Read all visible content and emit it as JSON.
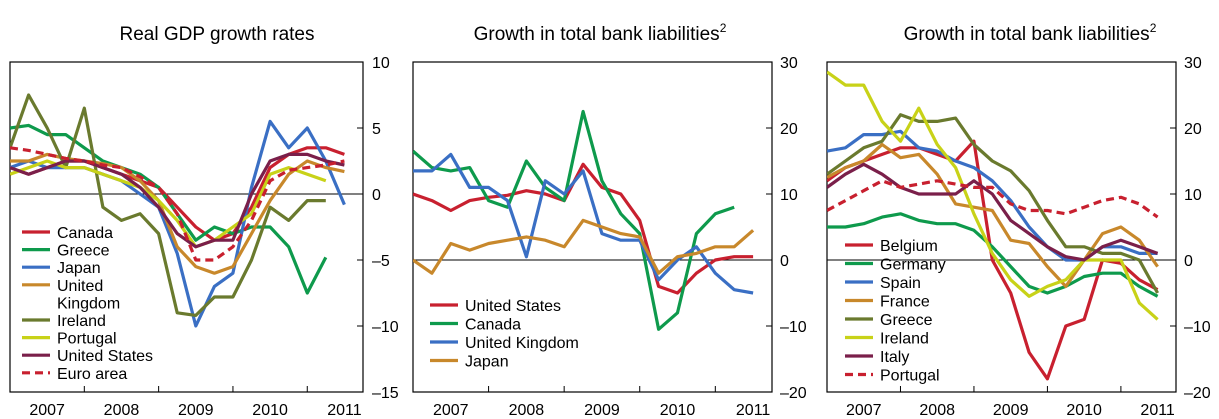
{
  "chart_data": [
    {
      "type": "line",
      "title": "Real GDP growth rates",
      "title_sup": "",
      "xlabel": "",
      "ylabel": "",
      "x_ticks": [
        "2007",
        "2008",
        "2009",
        "2010",
        "2011"
      ],
      "xlim": [
        2006.5,
        2011.25
      ],
      "ylim": [
        -15,
        10
      ],
      "y_ticks": [
        -15,
        -10,
        -5,
        0,
        5,
        10
      ],
      "y_tick_labels": [
        "–15",
        "–10",
        "–5",
        "0",
        "5",
        "10"
      ],
      "grid": false,
      "legend_position": "bottom-left",
      "x": [
        2006.5,
        2006.75,
        2007.0,
        2007.25,
        2007.5,
        2007.75,
        2008.0,
        2008.25,
        2008.5,
        2008.75,
        2009.0,
        2009.25,
        2009.5,
        2009.75,
        2010.0,
        2010.25,
        2010.5,
        2010.75,
        2011.0
      ],
      "series": [
        {
          "name": "Canada",
          "color": "#c8202f",
          "dash": false,
          "values": [
            2.0,
            1.5,
            2.0,
            2.5,
            2.5,
            2.0,
            1.5,
            1.0,
            0.5,
            -1.0,
            -2.5,
            -3.5,
            -3.0,
            -1.0,
            2.0,
            3.0,
            3.5,
            3.5,
            3.0
          ]
        },
        {
          "name": "Greece",
          "color": "#0e9a4c",
          "dash": false,
          "values": [
            5.0,
            5.2,
            4.5,
            4.5,
            3.5,
            2.5,
            2.0,
            1.5,
            0.5,
            -1.5,
            -3.5,
            -2.5,
            -3.0,
            -2.5,
            -2.5,
            -4.0,
            -7.5,
            -4.8,
            null
          ]
        },
        {
          "name": "Japan",
          "color": "#3a6fc4",
          "dash": false,
          "values": [
            2.0,
            2.5,
            2.0,
            2.0,
            2.0,
            1.5,
            1.0,
            0.0,
            -1.0,
            -4.5,
            -10.0,
            -7.0,
            -6.0,
            0.5,
            5.5,
            3.5,
            5.0,
            2.5,
            -0.8
          ]
        },
        {
          "name": "United Kingdom",
          "color": "#c8882b",
          "dash": false,
          "values": [
            2.5,
            2.5,
            3.0,
            2.7,
            2.5,
            2.3,
            2.0,
            1.0,
            -0.5,
            -4.0,
            -5.5,
            -6.0,
            -5.5,
            -3.0,
            -0.5,
            1.5,
            2.5,
            2.0,
            1.7
          ]
        },
        {
          "name": "Ireland",
          "color": "#6a7a2e",
          "dash": false,
          "values": [
            3.5,
            7.5,
            5.0,
            2.0,
            6.5,
            -1.0,
            -2.0,
            -1.5,
            -3.0,
            -9.0,
            -9.2,
            -7.8,
            -7.8,
            -5.0,
            -1.0,
            -2.0,
            -0.5,
            -0.5,
            null
          ]
        },
        {
          "name": "Portugal",
          "color": "#c8d218",
          "dash": false,
          "values": [
            1.5,
            2.0,
            2.5,
            2.0,
            2.0,
            1.5,
            1.0,
            0.5,
            -0.5,
            -2.0,
            -4.0,
            -3.5,
            -2.5,
            -1.5,
            1.5,
            2.0,
            1.5,
            1.0,
            null
          ]
        },
        {
          "name": "United States",
          "color": "#7a1f4a",
          "dash": false,
          "values": [
            2.0,
            1.5,
            2.0,
            2.5,
            2.5,
            2.0,
            1.5,
            0.5,
            -1.0,
            -3.0,
            -4.0,
            -3.5,
            -3.5,
            0.0,
            2.5,
            3.0,
            3.0,
            2.5,
            2.2
          ]
        },
        {
          "name": "Euro area",
          "color": "#c8202f",
          "dash": true,
          "values": [
            3.5,
            3.3,
            3.0,
            2.7,
            2.5,
            2.2,
            2.0,
            1.3,
            0.5,
            -1.5,
            -5.0,
            -5.0,
            -4.0,
            -2.0,
            1.0,
            1.8,
            2.0,
            2.2,
            2.5
          ]
        }
      ]
    },
    {
      "type": "line",
      "title": "Growth in total bank liabilities",
      "title_sup": "2",
      "xlabel": "",
      "ylabel": "",
      "x_ticks": [
        "2007",
        "2008",
        "2009",
        "2010",
        "2011"
      ],
      "xlim": [
        2006.5,
        2011.25
      ],
      "ylim": [
        -20,
        30
      ],
      "y_ticks": [
        -20,
        -10,
        0,
        10,
        20,
        30
      ],
      "y_tick_labels": [
        "–20",
        "–10",
        "0",
        "10",
        "20",
        "30"
      ],
      "grid": false,
      "legend_position": "bottom-left",
      "x": [
        2006.5,
        2006.75,
        2007.0,
        2007.25,
        2007.5,
        2007.75,
        2008.0,
        2008.25,
        2008.5,
        2008.75,
        2009.0,
        2009.25,
        2009.5,
        2009.75,
        2010.0,
        2010.25,
        2010.5,
        2010.75,
        2011.0
      ],
      "series": [
        {
          "name": "United States",
          "color": "#c8202f",
          "dash": false,
          "values": [
            10.0,
            9.0,
            7.5,
            9.0,
            9.5,
            9.8,
            10.5,
            10.0,
            9.0,
            14.5,
            11.0,
            10.0,
            6.0,
            -4.0,
            -5.0,
            -2.0,
            0.0,
            0.5,
            0.5
          ]
        },
        {
          "name": "Canada",
          "color": "#0e9a4c",
          "dash": false,
          "values": [
            16.5,
            14.0,
            13.5,
            14.0,
            9.0,
            8.0,
            15.0,
            11.0,
            9.0,
            22.5,
            12.0,
            7.0,
            4.0,
            -10.5,
            -8.0,
            4.0,
            7.0,
            8.0,
            null
          ]
        },
        {
          "name": "United Kingdom",
          "color": "#3a6fc4",
          "dash": false,
          "values": [
            13.5,
            13.5,
            16.0,
            11.0,
            11.0,
            9.0,
            0.5,
            12.0,
            10.0,
            13.5,
            4.0,
            3.0,
            3.0,
            -3.0,
            0.0,
            2.0,
            -2.0,
            -4.5,
            -5.0
          ]
        },
        {
          "name": "Japan",
          "color": "#c8882b",
          "dash": false,
          "values": [
            0.0,
            -2.0,
            2.5,
            1.5,
            2.5,
            3.0,
            3.5,
            3.0,
            2.0,
            6.0,
            5.0,
            4.0,
            3.5,
            -2.0,
            0.5,
            1.0,
            2.0,
            2.0,
            4.5
          ]
        }
      ]
    },
    {
      "type": "line",
      "title": "Growth in total bank liabilities",
      "title_sup": "2",
      "xlabel": "",
      "ylabel": "",
      "x_ticks": [
        "2007",
        "2008",
        "2009",
        "2010",
        "2011"
      ],
      "xlim": [
        2006.5,
        2011.25
      ],
      "ylim": [
        -20,
        30
      ],
      "y_ticks": [
        -20,
        -10,
        0,
        10,
        20,
        30
      ],
      "y_tick_labels": [
        "–20",
        "–10",
        "0",
        "10",
        "20",
        "30"
      ],
      "grid": false,
      "legend_position": "bottom-left",
      "x": [
        2006.5,
        2006.75,
        2007.0,
        2007.25,
        2007.5,
        2007.75,
        2008.0,
        2008.25,
        2008.5,
        2008.75,
        2009.0,
        2009.25,
        2009.5,
        2009.75,
        2010.0,
        2010.25,
        2010.5,
        2010.75,
        2011.0
      ],
      "series": [
        {
          "name": "Belgium",
          "color": "#c8202f",
          "dash": false,
          "values": [
            12.0,
            14.0,
            15.0,
            16.0,
            17.0,
            17.0,
            16.0,
            15.0,
            18.0,
            0.0,
            -5.0,
            -14.0,
            -18.0,
            -10.0,
            -9.0,
            0.0,
            -0.5,
            -3.0,
            -4.5
          ]
        },
        {
          "name": "Germany",
          "color": "#0e9a4c",
          "dash": false,
          "values": [
            5.0,
            5.0,
            5.5,
            6.5,
            7.0,
            6.0,
            5.5,
            5.5,
            4.5,
            2.0,
            -1.0,
            -4.0,
            -5.0,
            -4.0,
            -2.5,
            -2.0,
            -2.0,
            -4.0,
            -5.5
          ]
        },
        {
          "name": "Spain",
          "color": "#3a6fc4",
          "dash": false,
          "values": [
            16.5,
            17.0,
            19.0,
            19.0,
            19.5,
            17.0,
            16.5,
            15.0,
            14.0,
            12.0,
            9.0,
            5.0,
            2.0,
            0.0,
            0.0,
            2.0,
            2.0,
            1.0,
            1.0
          ]
        },
        {
          "name": "France",
          "color": "#c8882b",
          "dash": false,
          "values": [
            12.5,
            14.0,
            15.0,
            17.5,
            15.5,
            16.0,
            13.0,
            8.5,
            8.0,
            7.5,
            3.0,
            2.5,
            -1.0,
            -4.0,
            0.0,
            4.0,
            5.0,
            3.0,
            -1.0
          ]
        },
        {
          "name": "Greece",
          "color": "#6a7a2e",
          "dash": false,
          "values": [
            13.0,
            15.0,
            17.0,
            18.0,
            22.0,
            21.0,
            21.0,
            21.5,
            17.5,
            15.0,
            13.5,
            10.5,
            6.0,
            2.0,
            2.0,
            1.0,
            1.0,
            0.0,
            -5.0
          ]
        },
        {
          "name": "Ireland",
          "color": "#c8d218",
          "dash": false,
          "values": [
            28.5,
            26.5,
            26.5,
            21.0,
            18.0,
            23.0,
            17.5,
            14.0,
            7.0,
            1.0,
            -3.0,
            -5.5,
            -4.0,
            -3.0,
            0.0,
            0.0,
            0.0,
            -6.5,
            -9.0
          ]
        },
        {
          "name": "Italy",
          "color": "#7a1f4a",
          "dash": false,
          "values": [
            11.0,
            13.0,
            14.5,
            13.0,
            11.0,
            10.0,
            10.0,
            10.0,
            12.0,
            10.0,
            6.0,
            4.0,
            2.0,
            0.5,
            0.0,
            2.0,
            3.0,
            2.0,
            1.0
          ]
        },
        {
          "name": "Portugal",
          "color": "#c8202f",
          "dash": true,
          "values": [
            7.5,
            9.0,
            10.5,
            12.0,
            11.0,
            11.5,
            12.0,
            11.5,
            11.0,
            11.0,
            8.5,
            7.5,
            7.5,
            7.0,
            8.0,
            9.0,
            9.5,
            8.5,
            6.5
          ]
        }
      ]
    }
  ]
}
